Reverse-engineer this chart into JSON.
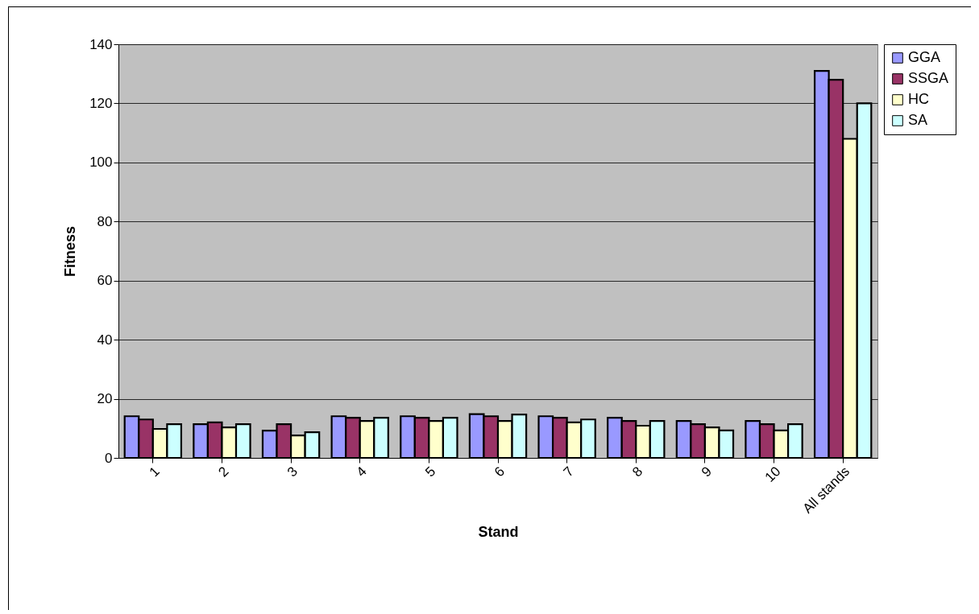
{
  "chart_data": {
    "type": "bar",
    "xlabel": "Stand",
    "ylabel": "Fitness",
    "categories": [
      "1",
      "2",
      "3",
      "4",
      "5",
      "6",
      "7",
      "8",
      "9",
      "10",
      "All stands"
    ],
    "series": [
      {
        "name": "GGA",
        "color": "#9999ff",
        "values": [
          14.1,
          11.4,
          9.2,
          14.1,
          14.1,
          14.8,
          14.1,
          13.6,
          12.5,
          12.5,
          131
        ]
      },
      {
        "name": "SSGA",
        "color": "#993366",
        "values": [
          13.0,
          12.0,
          11.4,
          13.6,
          13.6,
          14.1,
          13.6,
          12.5,
          11.4,
          11.4,
          128
        ]
      },
      {
        "name": "HC",
        "color": "#ffffcc",
        "values": [
          9.8,
          10.3,
          7.6,
          12.5,
          12.5,
          12.5,
          12.0,
          10.9,
          10.3,
          9.3,
          108
        ]
      },
      {
        "name": "SA",
        "color": "#ccffff",
        "values": [
          11.4,
          11.4,
          8.7,
          13.6,
          13.6,
          14.7,
          13.0,
          12.5,
          9.3,
          11.4,
          120
        ]
      }
    ],
    "ylim": [
      0,
      140
    ],
    "yticks": [
      0,
      20,
      40,
      60,
      80,
      100,
      120,
      140
    ],
    "grid": "y",
    "legend": "right"
  }
}
